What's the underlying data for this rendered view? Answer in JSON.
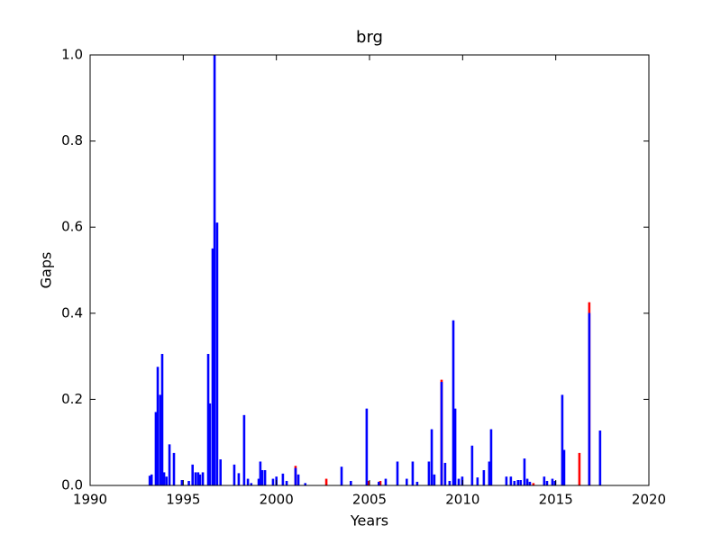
{
  "chart_data": {
    "type": "bar",
    "title": "brg",
    "x_label": "Years",
    "y_label": "Gaps",
    "xlim": [
      1990,
      2020
    ],
    "ylim": [
      0,
      1
    ],
    "xticks": [
      1990,
      1995,
      2000,
      2005,
      2010,
      2015,
      2020
    ],
    "yticks": [
      {
        "value": 0,
        "label": "0.0"
      },
      0.2,
      0.4,
      0.6,
      0.8,
      {
        "value": 1,
        "label": "1.0"
      }
    ],
    "series": [
      {
        "color": "#ff0000",
        "x": [
          2001.03,
          2002.68,
          2004.94,
          2005.58,
          2008.87,
          2013.8,
          2016.27,
          2016.8
        ],
        "values": [
          0.045,
          0.015,
          0.01,
          0.01,
          0.245,
          0.005,
          0.075,
          0.425
        ]
      },
      {
        "color": "#0000ff",
        "x": [
          1993.2,
          1993.3,
          1993.53,
          1993.63,
          1993.77,
          1993.87,
          1993.97,
          1994.1,
          1994.26,
          1994.5,
          1994.93,
          1995.3,
          1995.5,
          1995.66,
          1995.8,
          1995.9,
          1996.05,
          1996.34,
          1996.43,
          1996.58,
          1996.68,
          1996.82,
          1997.0,
          1997.74,
          1997.98,
          1998.27,
          1998.47,
          1998.65,
          1999.05,
          1999.14,
          1999.24,
          1999.39,
          1999.82,
          2000.0,
          2000.35,
          2000.55,
          2001.03,
          2001.18,
          2001.55,
          2003.5,
          2004.0,
          2004.85,
          2005.5,
          2005.87,
          2006.5,
          2007.0,
          2007.32,
          2007.56,
          2008.19,
          2008.34,
          2008.48,
          2008.87,
          2009.06,
          2009.3,
          2009.5,
          2009.6,
          2009.79,
          2009.98,
          2010.51,
          2010.8,
          2011.14,
          2011.43,
          2011.53,
          2012.35,
          2012.59,
          2012.78,
          2012.97,
          2013.11,
          2013.32,
          2013.47,
          2013.61,
          2014.38,
          2014.53,
          2014.82,
          2014.96,
          2015.35,
          2015.45,
          2016.8,
          2017.38
        ],
        "values": [
          0.022,
          0.025,
          0.17,
          0.275,
          0.21,
          0.305,
          0.03,
          0.02,
          0.095,
          0.075,
          0.012,
          0.01,
          0.048,
          0.03,
          0.03,
          0.025,
          0.03,
          0.305,
          0.19,
          0.55,
          1.0,
          0.61,
          0.06,
          0.048,
          0.028,
          0.163,
          0.015,
          0.005,
          0.015,
          0.055,
          0.035,
          0.035,
          0.015,
          0.02,
          0.027,
          0.01,
          0.04,
          0.025,
          0.005,
          0.043,
          0.01,
          0.178,
          0.008,
          0.015,
          0.055,
          0.015,
          0.055,
          0.008,
          0.055,
          0.13,
          0.025,
          0.24,
          0.052,
          0.01,
          0.383,
          0.178,
          0.015,
          0.02,
          0.092,
          0.018,
          0.035,
          0.055,
          0.13,
          0.02,
          0.02,
          0.01,
          0.012,
          0.012,
          0.062,
          0.015,
          0.008,
          0.02,
          0.01,
          0.015,
          0.01,
          0.21,
          0.082,
          0.4,
          0.127
        ]
      }
    ]
  }
}
